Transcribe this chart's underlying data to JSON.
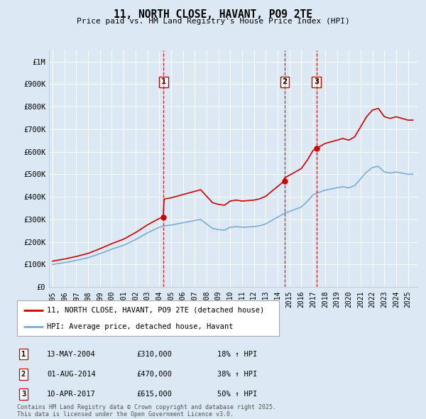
{
  "title": "11, NORTH CLOSE, HAVANT, PO9 2TE",
  "subtitle": "Price paid vs. HM Land Registry's House Price Index (HPI)",
  "background_color": "#dce9f5",
  "plot_bg_color": "#dce9f5",
  "ylim": [
    0,
    1050000
  ],
  "yticks": [
    0,
    100000,
    200000,
    300000,
    400000,
    500000,
    600000,
    700000,
    800000,
    900000,
    1000000
  ],
  "ytick_labels": [
    "£0",
    "£100K",
    "£200K",
    "£300K",
    "£400K",
    "£500K",
    "£600K",
    "£700K",
    "£800K",
    "£900K",
    "£1M"
  ],
  "sale_dates": [
    2004.37,
    2014.58,
    2017.27
  ],
  "sale_prices": [
    310000,
    470000,
    615000
  ],
  "sale_labels": [
    "1",
    "2",
    "3"
  ],
  "vline_color": "#cc0000",
  "hpi_line_color": "#7aadd4",
  "price_line_color": "#cc0000",
  "legend_items": [
    {
      "label": "11, NORTH CLOSE, HAVANT, PO9 2TE (detached house)",
      "color": "#cc0000"
    },
    {
      "label": "HPI: Average price, detached house, Havant",
      "color": "#7aadd4"
    }
  ],
  "table_rows": [
    {
      "num": "1",
      "date": "13-MAY-2004",
      "price": "£310,000",
      "change": "18% ↑ HPI"
    },
    {
      "num": "2",
      "date": "01-AUG-2014",
      "price": "£470,000",
      "change": "38% ↑ HPI"
    },
    {
      "num": "3",
      "date": "10-APR-2017",
      "price": "£615,000",
      "change": "50% ↑ HPI"
    }
  ],
  "footer": "Contains HM Land Registry data © Crown copyright and database right 2025.\nThis data is licensed under the Open Government Licence v3.0.",
  "xtick_start": 1995,
  "xtick_end": 2025
}
